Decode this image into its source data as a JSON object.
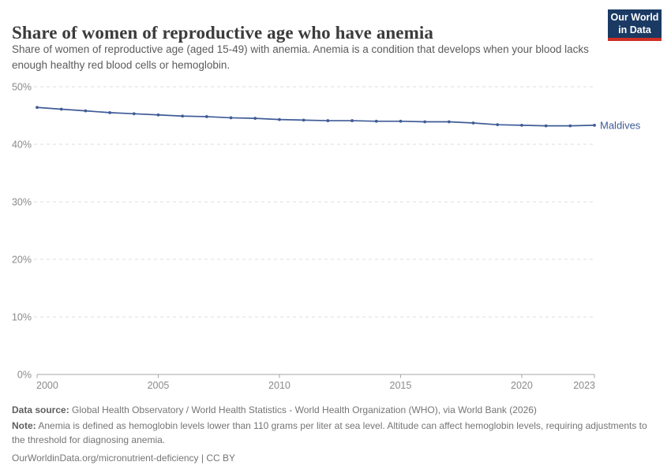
{
  "header": {
    "title": "Share of women of reproductive age who have anemia",
    "logo": {
      "line1": "Our World",
      "line2": "in Data",
      "bg_color": "#1a3a63",
      "accent_color": "#cf2f24"
    }
  },
  "subtitle": "Share of women of reproductive age (aged 15-49) with anemia. Anemia is a condition that develops when your blood lacks enough healthy red blood cells or hemoglobin.",
  "chart_data": {
    "type": "line",
    "title": "Share of women of reproductive age who have anemia",
    "x": [
      2000,
      2001,
      2002,
      2003,
      2004,
      2005,
      2006,
      2007,
      2008,
      2009,
      2010,
      2011,
      2012,
      2013,
      2014,
      2015,
      2016,
      2017,
      2018,
      2019,
      2020,
      2021,
      2022,
      2023
    ],
    "series": [
      {
        "name": "Maldives",
        "color": "#3f5b96",
        "values": [
          46.4,
          46.1,
          45.8,
          45.5,
          45.3,
          45.1,
          44.9,
          44.8,
          44.6,
          44.5,
          44.3,
          44.2,
          44.1,
          44.1,
          44.0,
          44.0,
          43.9,
          43.9,
          43.7,
          43.4,
          43.3,
          43.2,
          43.2,
          43.3
        ]
      }
    ],
    "ylim": [
      0,
      50
    ],
    "yticks": [
      {
        "v": 0,
        "label": "0%"
      },
      {
        "v": 10,
        "label": "10%"
      },
      {
        "v": 20,
        "label": "20%"
      },
      {
        "v": 30,
        "label": "30%"
      },
      {
        "v": 40,
        "label": "40%"
      },
      {
        "v": 50,
        "label": "50%"
      }
    ],
    "xticks": [
      {
        "v": 2000,
        "label": "2000"
      },
      {
        "v": 2005,
        "label": "2005"
      },
      {
        "v": 2010,
        "label": "2010"
      },
      {
        "v": 2015,
        "label": "2015"
      },
      {
        "v": 2020,
        "label": "2020"
      },
      {
        "v": 2023,
        "label": "2023"
      }
    ],
    "grid": "dashed horizontal",
    "legend": "end-of-line label",
    "xlabel": "",
    "ylabel": "",
    "colors": {
      "gridline": "#dcdcdc",
      "axis": "#a6a6a6",
      "tick_text": "#8a8a8a"
    }
  },
  "footer": {
    "data_source_label": "Data source:",
    "data_source_text": "Global Health Observatory / World Health Statistics - World Health Organization (WHO), via World Bank (2026)",
    "note_label": "Note:",
    "note_text": "Anemia is defined as hemoglobin levels lower than 110 grams per liter at sea level. Altitude can affect hemoglobin levels, requiring adjustments to the threshold for diagnosing anemia.",
    "license_text": "OurWorldinData.org/micronutrient-deficiency | CC BY"
  }
}
